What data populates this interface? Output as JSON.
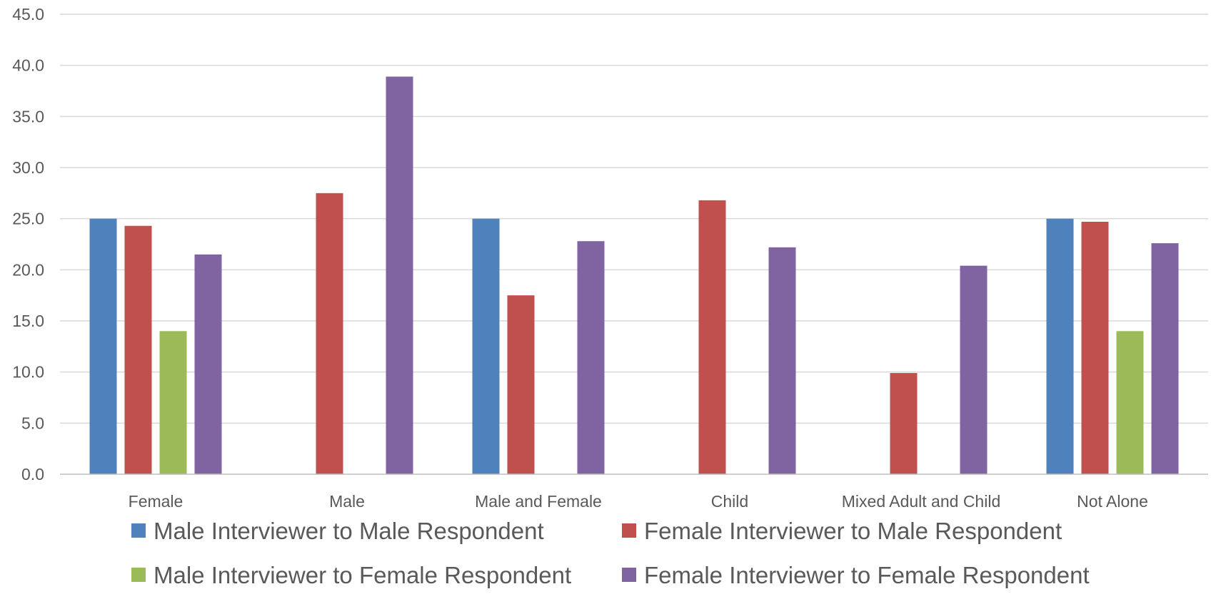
{
  "chart_data": {
    "type": "bar",
    "title": "",
    "xlabel": "",
    "ylabel": "",
    "ylim": [
      0,
      45
    ],
    "ytick_step": 5,
    "ytick_labels": [
      "0.0",
      "5.0",
      "10.0",
      "15.0",
      "20.0",
      "25.0",
      "30.0",
      "35.0",
      "40.0",
      "45.0"
    ],
    "grid": true,
    "legend_position": "bottom",
    "categories": [
      "Female",
      "Male",
      "Male and Female",
      "Child",
      "Mixed Adult and Child",
      "Not Alone"
    ],
    "series": [
      {
        "name": "Male Interviewer to Male Respondent",
        "color": "#4f81bd",
        "values": [
          25.0,
          0,
          25.0,
          0,
          0,
          25.0
        ]
      },
      {
        "name": "Female Interviewer to Male Respondent",
        "color": "#c0504d",
        "values": [
          24.3,
          27.5,
          17.5,
          26.8,
          9.9,
          24.7
        ]
      },
      {
        "name": "Male Interviewer to Female Respondent",
        "color": "#9bbb59",
        "values": [
          14.0,
          0,
          0,
          0,
          0,
          14.0
        ]
      },
      {
        "name": "Female Interviewer to Female Respondent",
        "color": "#8064a2",
        "values": [
          21.5,
          38.9,
          22.8,
          22.2,
          20.4,
          22.6
        ]
      }
    ]
  }
}
